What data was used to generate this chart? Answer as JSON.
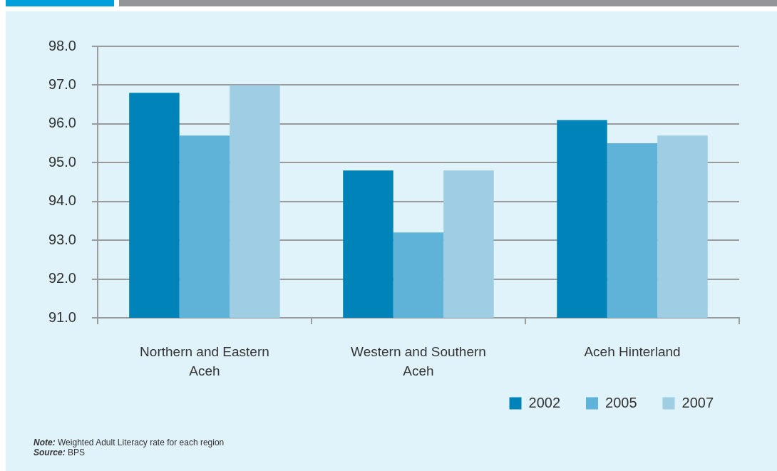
{
  "chart_data": {
    "type": "bar",
    "categories": [
      "Northern and Eastern Aceh",
      "Western and Southern Aceh",
      "Aceh Hinterland"
    ],
    "series": [
      {
        "name": "2002",
        "color": "#0083b8",
        "values": [
          96.8,
          94.8,
          96.1
        ]
      },
      {
        "name": "2005",
        "color": "#5fb3d8",
        "values": [
          95.7,
          93.2,
          95.5
        ]
      },
      {
        "name": "2007",
        "color": "#9ecde4",
        "values": [
          97.0,
          94.8,
          95.7
        ]
      }
    ],
    "ylim": [
      91,
      98
    ],
    "yticks": [
      {
        "value": 91,
        "label": "91.0"
      },
      {
        "value": 92,
        "label": "92.0"
      },
      {
        "value": 93,
        "label": "93.0"
      },
      {
        "value": 94,
        "label": "94.0"
      },
      {
        "value": 95,
        "label": "95.0"
      },
      {
        "value": 96,
        "label": "96.0"
      },
      {
        "value": 97,
        "label": "97.0"
      },
      {
        "value": 98,
        "label": "98.0"
      }
    ],
    "grid": "y",
    "legend": "bottom right",
    "annotations": [
      "Note: Weighted Adult Literacy rate for each region",
      "Source: BPS"
    ]
  }
}
